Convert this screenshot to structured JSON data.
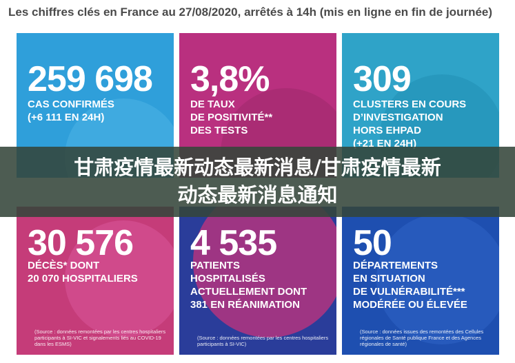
{
  "header": {
    "title": "Les chiffres clés en France au 27/08/2020, arrêtés à 14h (mis en ligne en fin de journée)"
  },
  "tiles": [
    {
      "value": "259 698",
      "lines": [
        "CAS CONFIRMÉS",
        "(+6 111 EN 24H)"
      ],
      "color": "#2f9fda"
    },
    {
      "value": "3,8%",
      "lines": [
        "DE TAUX",
        "DE POSITIVITÉ**",
        "DES TESTS"
      ],
      "color": "#b9307f"
    },
    {
      "value": "309",
      "lines": [
        "CLUSTERS EN COURS",
        "D’INVESTIGATION",
        "HORS EHPAD",
        "(+21 EN 24H)"
      ],
      "color": "#2fa3c8"
    },
    {
      "value": "30 576",
      "lines": [
        "DÉCÈS* DONT",
        "20 070 HOSPITALIERS"
      ],
      "source": "(Source : données remontées par les centres hospitaliers participants à SI-VIC et signalements liés au COVID-19 dans les ESMS)",
      "color": "#c53c79"
    },
    {
      "value": "4 535",
      "lines": [
        "PATIENTS",
        "HOSPITALISÉS",
        "ACTUELLEMENT DONT",
        "381 EN RÉANIMATION"
      ],
      "source": "(Source : données remontées par les centres hospitaliers participants à SI-VIC)",
      "color": "#2a3d9a"
    },
    {
      "value": "50",
      "lines": [
        "DÉPARTEMENTS",
        "EN SITUATION",
        "DE VULNÉRABILITÉ***",
        "MODÉRÉE OU ÉLEVÉE"
      ],
      "source": "(Source : données issues des remontées des Cellules régionales de Santé publique France et des Agences régionales de santé)",
      "color": "#1e4fb0"
    }
  ],
  "banner": {
    "line1": "甘肃疫情最新动态最新消息/甘肃疫情最新",
    "line2": "动态最新消息通知"
  }
}
